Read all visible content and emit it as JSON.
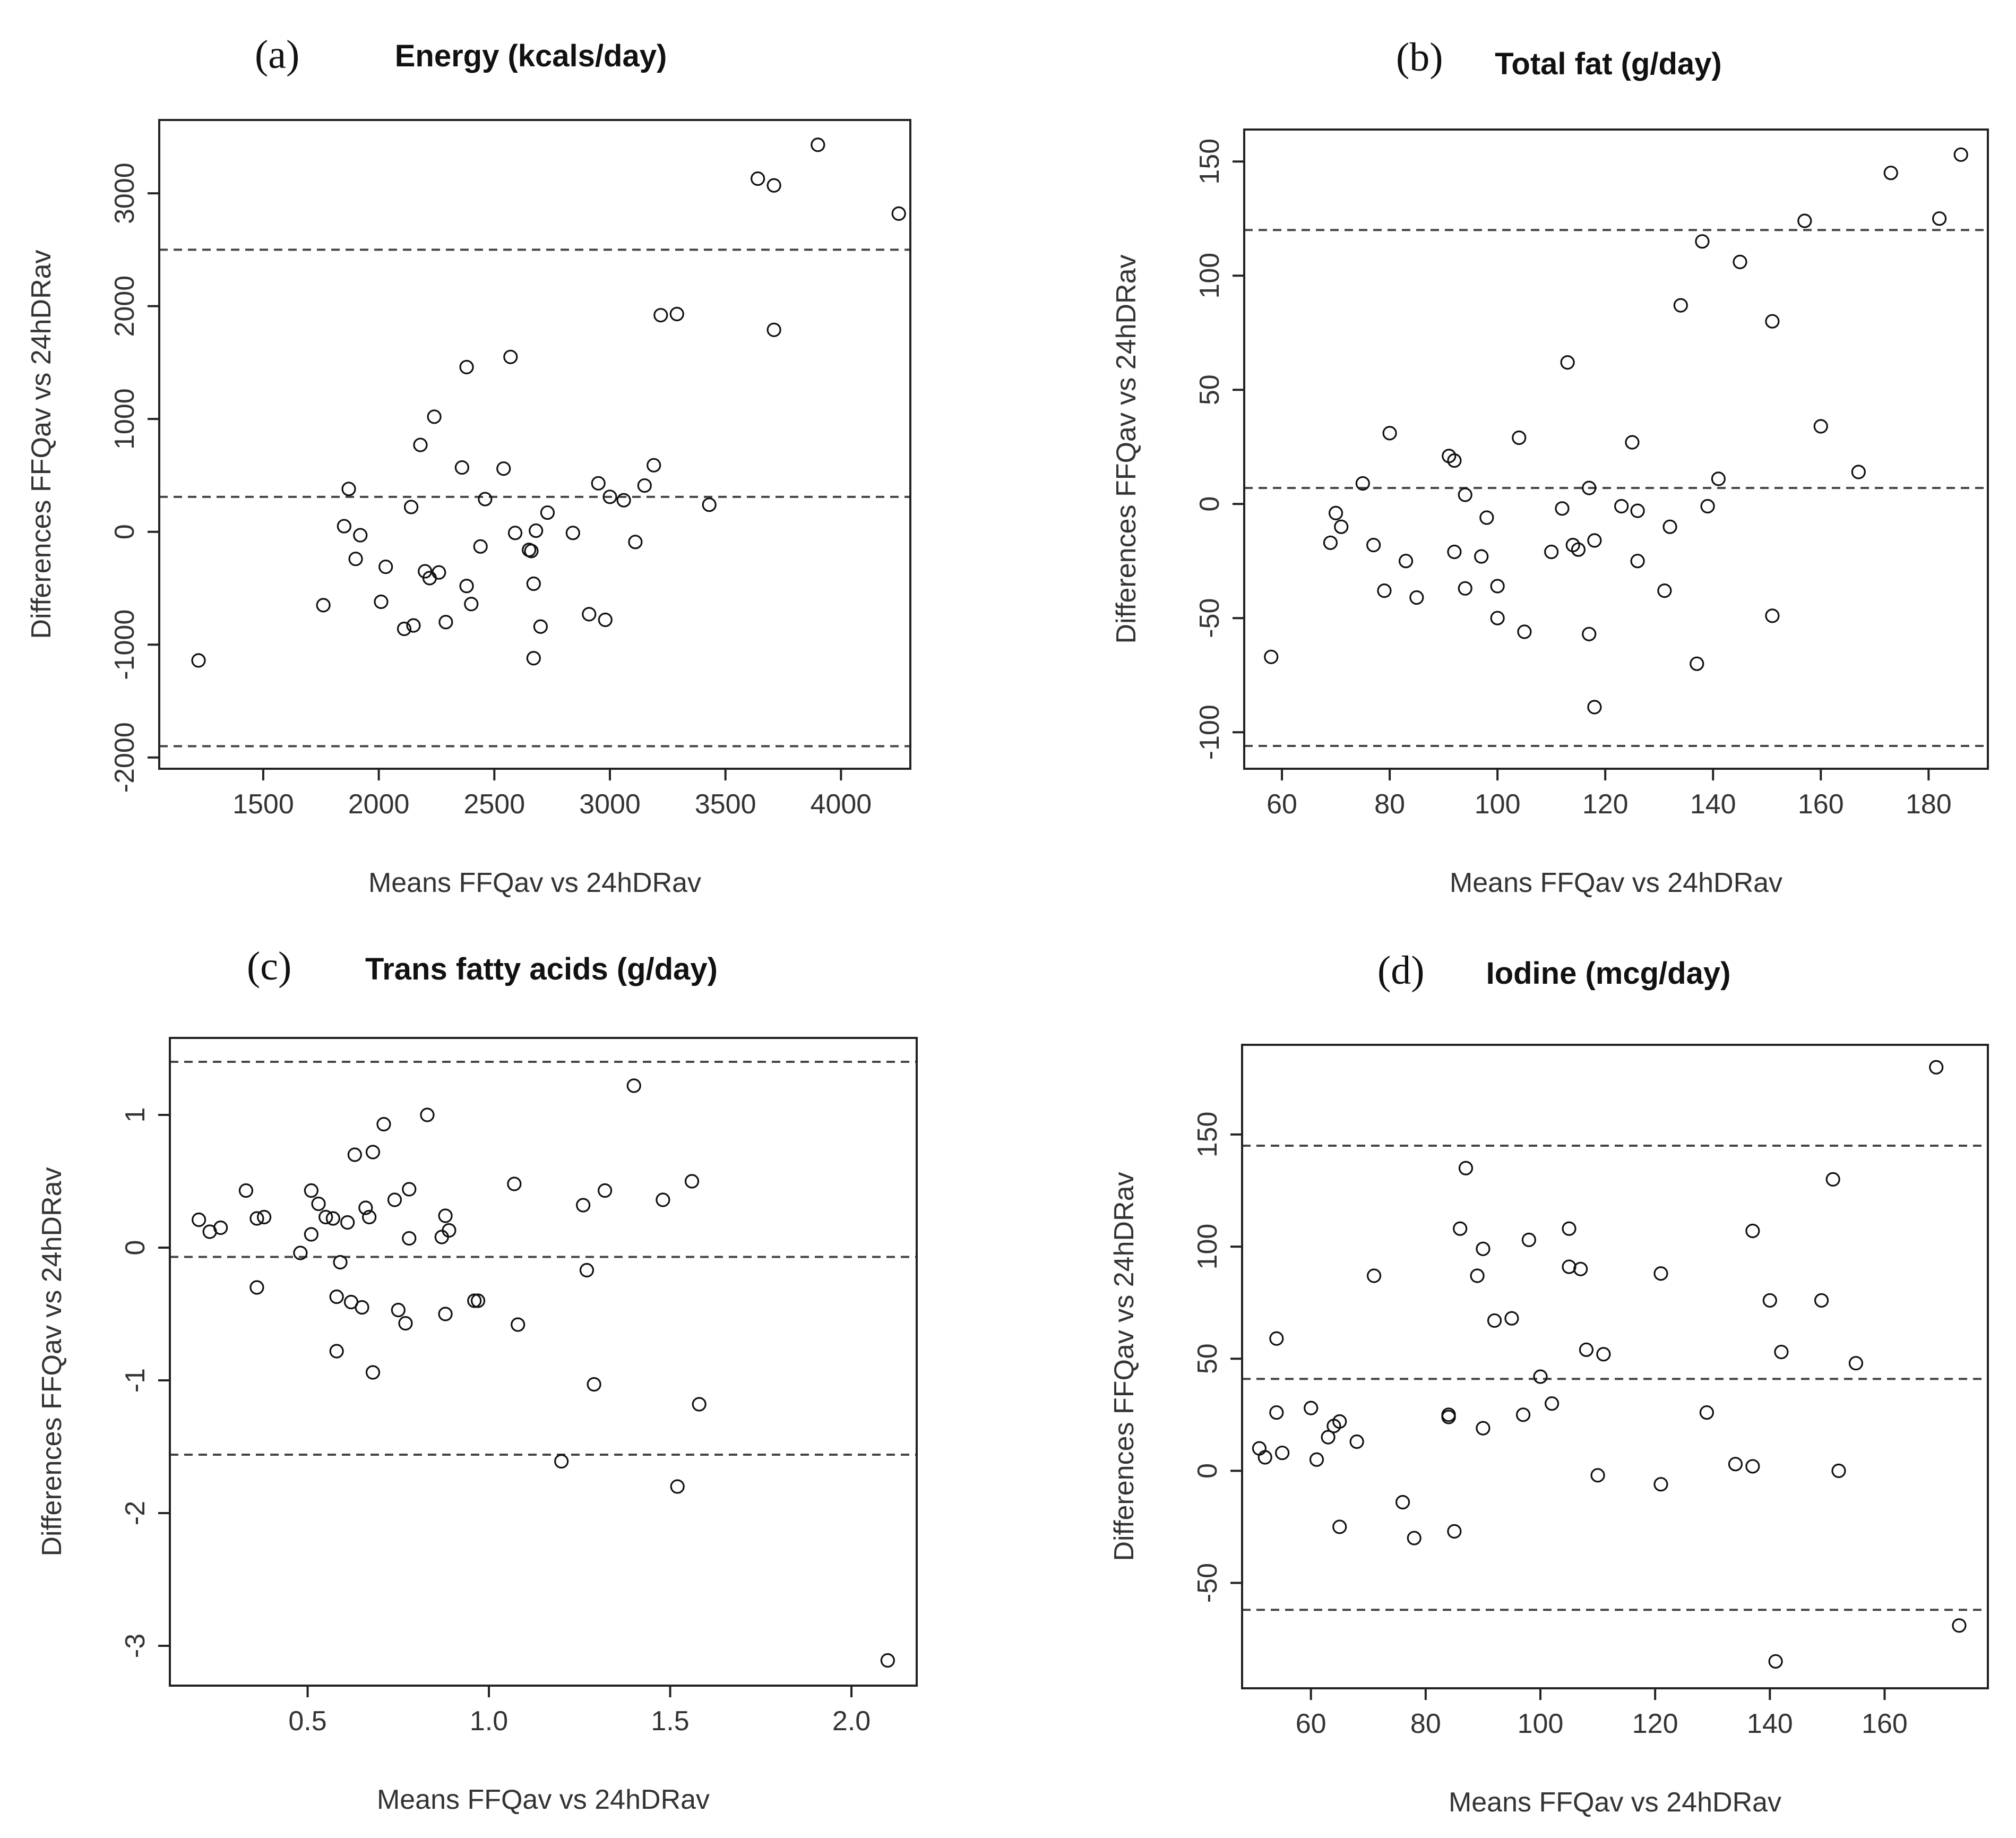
{
  "chart_data": [
    {
      "type": "scatter",
      "panel": "(a)",
      "title": "Energy (kcals/day)",
      "xlabel": "Means FFQav vs 24hDRav",
      "ylabel": "Differences FFQav vs 24hDRav",
      "xlim": [
        1050,
        4300
      ],
      "ylim": [
        -2100,
        3650
      ],
      "xticks": [
        1500,
        2000,
        2500,
        3000,
        3500,
        4000
      ],
      "yticks": [
        -2000,
        -1000,
        0,
        1000,
        2000,
        3000
      ],
      "reference_lines": [
        {
          "name": "upper limit of agreement",
          "y": 2500
        },
        {
          "name": "mean difference",
          "y": 310
        },
        {
          "name": "lower limit of agreement",
          "y": -1900
        }
      ],
      "points": [
        [
          1220,
          -1140
        ],
        [
          1760,
          -650
        ],
        [
          1850,
          50
        ],
        [
          1870,
          380
        ],
        [
          1900,
          -240
        ],
        [
          1920,
          -30
        ],
        [
          2010,
          -620
        ],
        [
          2030,
          -310
        ],
        [
          2110,
          -860
        ],
        [
          2140,
          220
        ],
        [
          2150,
          -830
        ],
        [
          2180,
          770
        ],
        [
          2200,
          -350
        ],
        [
          2220,
          -410
        ],
        [
          2240,
          1020
        ],
        [
          2260,
          -360
        ],
        [
          2290,
          -800
        ],
        [
          2360,
          570
        ],
        [
          2380,
          1460
        ],
        [
          2380,
          -480
        ],
        [
          2400,
          -640
        ],
        [
          2440,
          -130
        ],
        [
          2460,
          290
        ],
        [
          2540,
          560
        ],
        [
          2570,
          1550
        ],
        [
          2590,
          -10
        ],
        [
          2650,
          -160
        ],
        [
          2660,
          -170
        ],
        [
          2670,
          -460
        ],
        [
          2670,
          -1120
        ],
        [
          2680,
          10
        ],
        [
          2700,
          -840
        ],
        [
          2730,
          170
        ],
        [
          2840,
          -10
        ],
        [
          2910,
          -730
        ],
        [
          2950,
          430
        ],
        [
          2980,
          -780
        ],
        [
          3000,
          310
        ],
        [
          3060,
          280
        ],
        [
          3110,
          -90
        ],
        [
          3150,
          410
        ],
        [
          3190,
          590
        ],
        [
          3220,
          1920
        ],
        [
          3290,
          1930
        ],
        [
          3430,
          240
        ],
        [
          3640,
          3130
        ],
        [
          3710,
          3070
        ],
        [
          3710,
          1790
        ],
        [
          3900,
          3430
        ],
        [
          4250,
          2820
        ]
      ]
    },
    {
      "type": "scatter",
      "panel": "(b)",
      "title": "Total fat (g/day)",
      "xlabel": "Means FFQav vs 24hDRav",
      "ylabel": "Differences FFQav vs 24hDRav",
      "xlim": [
        53,
        191
      ],
      "ylim": [
        -116,
        164
      ],
      "xticks": [
        60,
        80,
        100,
        120,
        140,
        160,
        180
      ],
      "yticks": [
        -100,
        -50,
        0,
        50,
        100,
        150
      ],
      "reference_lines": [
        {
          "name": "upper limit of agreement",
          "y": 120
        },
        {
          "name": "mean difference",
          "y": 7
        },
        {
          "name": "lower limit of agreement",
          "y": -106
        }
      ],
      "points": [
        [
          58,
          -67
        ],
        [
          69,
          -17
        ],
        [
          70,
          -4
        ],
        [
          71,
          -10
        ],
        [
          75,
          9
        ],
        [
          77,
          -18
        ],
        [
          79,
          -38
        ],
        [
          80,
          31
        ],
        [
          83,
          -25
        ],
        [
          85,
          -41
        ],
        [
          91,
          21
        ],
        [
          92,
          19
        ],
        [
          92,
          -21
        ],
        [
          94,
          4
        ],
        [
          94,
          -37
        ],
        [
          97,
          -23
        ],
        [
          98,
          -6
        ],
        [
          100,
          -36
        ],
        [
          100,
          -50
        ],
        [
          104,
          29
        ],
        [
          105,
          -56
        ],
        [
          110,
          -21
        ],
        [
          112,
          -2
        ],
        [
          113,
          62
        ],
        [
          114,
          -18
        ],
        [
          115,
          -20
        ],
        [
          117,
          7
        ],
        [
          117,
          -57
        ],
        [
          118,
          -89
        ],
        [
          118,
          -16
        ],
        [
          123,
          -1
        ],
        [
          125,
          27
        ],
        [
          126,
          -3
        ],
        [
          126,
          -25
        ],
        [
          131,
          -38
        ],
        [
          132,
          -10
        ],
        [
          134,
          87
        ],
        [
          137,
          -70
        ],
        [
          138,
          115
        ],
        [
          139,
          -1
        ],
        [
          141,
          11
        ],
        [
          145,
          106
        ],
        [
          151,
          80
        ],
        [
          151,
          -49
        ],
        [
          157,
          124
        ],
        [
          160,
          34
        ],
        [
          167,
          14
        ],
        [
          173,
          145
        ],
        [
          182,
          125
        ],
        [
          186,
          153
        ]
      ]
    },
    {
      "type": "scatter",
      "panel": "(c)",
      "title": "Trans fatty acids (g/day)",
      "xlabel": "Means FFQav vs 24hDRav",
      "ylabel": "Differences FFQav vs 24hDRav",
      "xlim": [
        0.12,
        2.18
      ],
      "ylim": [
        -3.3,
        1.58
      ],
      "xticks": [
        0.5,
        1.0,
        1.5,
        2.0
      ],
      "xtick_labels": [
        "0.5",
        "1.0",
        "1.5",
        "2.0"
      ],
      "yticks": [
        -3,
        -2,
        -1,
        0,
        1
      ],
      "reference_lines": [
        {
          "name": "upper limit of agreement",
          "y": 1.4
        },
        {
          "name": "mean difference",
          "y": -0.07
        },
        {
          "name": "lower limit of agreement",
          "y": -1.56
        }
      ],
      "points": [
        [
          0.2,
          0.21
        ],
        [
          0.23,
          0.12
        ],
        [
          0.26,
          0.15
        ],
        [
          0.33,
          0.43
        ],
        [
          0.36,
          0.22
        ],
        [
          0.36,
          -0.3
        ],
        [
          0.38,
          0.23
        ],
        [
          0.48,
          -0.04
        ],
        [
          0.51,
          0.1
        ],
        [
          0.51,
          0.43
        ],
        [
          0.53,
          0.33
        ],
        [
          0.55,
          0.23
        ],
        [
          0.57,
          0.22
        ],
        [
          0.58,
          -0.37
        ],
        [
          0.58,
          -0.78
        ],
        [
          0.59,
          -0.11
        ],
        [
          0.61,
          0.19
        ],
        [
          0.62,
          -0.41
        ],
        [
          0.63,
          0.7
        ],
        [
          0.65,
          -0.45
        ],
        [
          0.66,
          0.3
        ],
        [
          0.67,
          0.23
        ],
        [
          0.68,
          0.72
        ],
        [
          0.68,
          -0.94
        ],
        [
          0.71,
          0.93
        ],
        [
          0.74,
          0.36
        ],
        [
          0.75,
          -0.47
        ],
        [
          0.77,
          -0.57
        ],
        [
          0.78,
          0.44
        ],
        [
          0.78,
          0.07
        ],
        [
          0.83,
          1.0
        ],
        [
          0.87,
          0.08
        ],
        [
          0.88,
          0.24
        ],
        [
          0.88,
          -0.5
        ],
        [
          0.89,
          0.13
        ],
        [
          0.96,
          -0.4
        ],
        [
          0.97,
          -0.4
        ],
        [
          1.07,
          0.48
        ],
        [
          1.08,
          -0.58
        ],
        [
          1.2,
          -1.61
        ],
        [
          1.26,
          0.32
        ],
        [
          1.27,
          -0.17
        ],
        [
          1.29,
          -1.03
        ],
        [
          1.32,
          0.43
        ],
        [
          1.4,
          1.22
        ],
        [
          1.48,
          0.36
        ],
        [
          1.52,
          -1.8
        ],
        [
          1.56,
          0.5
        ],
        [
          1.58,
          -1.18
        ],
        [
          2.1,
          -3.11
        ]
      ]
    },
    {
      "type": "scatter",
      "panel": "(d)",
      "title": "Iodine (mcg/day)",
      "xlabel": "Means FFQav vs 24hDRav",
      "ylabel": "Differences FFQav vs 24hDRav",
      "xlim": [
        48,
        178
      ],
      "ylim": [
        -97,
        190
      ],
      "xticks": [
        60,
        80,
        100,
        120,
        140,
        160
      ],
      "yticks": [
        -50,
        0,
        50,
        100,
        150
      ],
      "reference_lines": [
        {
          "name": "upper limit of agreement",
          "y": 145
        },
        {
          "name": "mean difference",
          "y": 41
        },
        {
          "name": "lower limit of agreement",
          "y": -62
        }
      ],
      "points": [
        [
          51,
          10
        ],
        [
          52,
          6
        ],
        [
          54,
          26
        ],
        [
          54,
          59
        ],
        [
          55,
          8
        ],
        [
          60,
          28
        ],
        [
          61,
          5
        ],
        [
          63,
          15
        ],
        [
          64,
          20
        ],
        [
          65,
          22
        ],
        [
          65,
          -25
        ],
        [
          68,
          13
        ],
        [
          71,
          87
        ],
        [
          76,
          -14
        ],
        [
          78,
          -30
        ],
        [
          84,
          25
        ],
        [
          84,
          24
        ],
        [
          85,
          -27
        ],
        [
          86,
          108
        ],
        [
          87,
          135
        ],
        [
          89,
          87
        ],
        [
          90,
          99
        ],
        [
          90,
          19
        ],
        [
          92,
          67
        ],
        [
          95,
          68
        ],
        [
          97,
          25
        ],
        [
          98,
          103
        ],
        [
          100,
          42
        ],
        [
          102,
          30
        ],
        [
          105,
          108
        ],
        [
          105,
          91
        ],
        [
          107,
          90
        ],
        [
          108,
          54
        ],
        [
          110,
          -2
        ],
        [
          111,
          52
        ],
        [
          121,
          88
        ],
        [
          121,
          -6
        ],
        [
          129,
          26
        ],
        [
          134,
          3
        ],
        [
          137,
          107
        ],
        [
          137,
          2
        ],
        [
          140,
          76
        ],
        [
          141,
          -85
        ],
        [
          142,
          53
        ],
        [
          149,
          76
        ],
        [
          151,
          130
        ],
        [
          152,
          0
        ],
        [
          155,
          48
        ],
        [
          169,
          180
        ],
        [
          173,
          -69
        ]
      ]
    }
  ]
}
